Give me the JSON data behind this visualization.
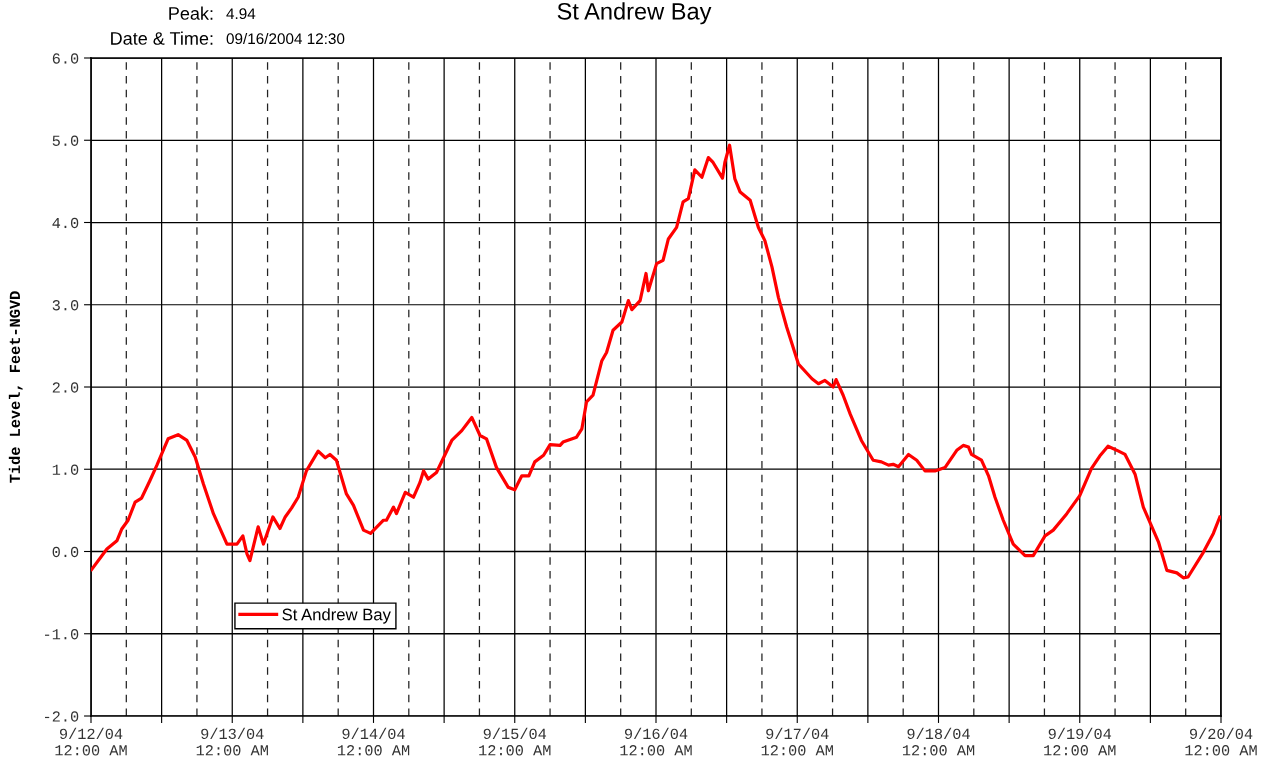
{
  "chart_data": {
    "type": "line",
    "title": "St Andrew Bay",
    "ylabel": "Tide Level, Feet-NGVD",
    "annotations": [
      "Peak:",
      "4.94",
      "Date & Time:",
      "09/16/2004 12:30"
    ],
    "xlim": [
      "2004-09-12T00:00",
      "2004-09-20T00:00"
    ],
    "xticks": [
      {
        "value": "2004-09-12T00:00",
        "label": "9/12/04\n12:00 AM"
      },
      {
        "value": "2004-09-12T12:00",
        "label": null
      },
      {
        "value": "2004-09-13T00:00",
        "label": "9/13/04\n12:00 AM"
      },
      {
        "value": "2004-09-13T12:00",
        "label": null
      },
      {
        "value": "2004-09-14T00:00",
        "label": "9/14/04\n12:00 AM"
      },
      {
        "value": "2004-09-14T12:00",
        "label": null
      },
      {
        "value": "2004-09-15T00:00",
        "label": "9/15/04\n12:00 AM"
      },
      {
        "value": "2004-09-15T12:00",
        "label": null
      },
      {
        "value": "2004-09-16T00:00",
        "label": "9/16/04\n12:00 AM"
      },
      {
        "value": "2004-09-16T12:00",
        "label": null
      },
      {
        "value": "2004-09-17T00:00",
        "label": "9/17/04\n12:00 AM"
      },
      {
        "value": "2004-09-17T12:00",
        "label": null
      },
      {
        "value": "2004-09-18T00:00",
        "label": "9/18/04\n12:00 AM"
      },
      {
        "value": "2004-09-18T12:00",
        "label": null
      },
      {
        "value": "2004-09-19T00:00",
        "label": "9/19/04\n12:00 AM"
      },
      {
        "value": "2004-09-19T12:00",
        "label": null
      },
      {
        "value": "2004-09-20T00:00",
        "label": "9/20/04\n12:00 AM"
      }
    ],
    "ylim": [
      -2,
      6
    ],
    "yticks": [
      {
        "value": -2,
        "label": "-2.0"
      },
      {
        "value": -1,
        "label": "-1.0"
      },
      {
        "value": 0,
        "label": "0.0"
      },
      {
        "value": 1,
        "label": "1.0"
      },
      {
        "value": 2,
        "label": "2.0"
      },
      {
        "value": 3,
        "label": "3.0"
      },
      {
        "value": 4,
        "label": "4.0"
      },
      {
        "value": 5,
        "label": "5.0"
      },
      {
        "value": 6,
        "label": "6.0"
      }
    ],
    "grid": true,
    "legend": "bottom left",
    "marker": "none",
    "line_style": "solid",
    "ref_lines": [
      {
        "axis": "x",
        "value": "2004-09-12T06:00",
        "line_style": "dashed"
      },
      {
        "axis": "x",
        "value": "2004-09-12T18:00",
        "line_style": "dashed"
      },
      {
        "axis": "x",
        "value": "2004-09-13T06:00",
        "line_style": "dashed"
      },
      {
        "axis": "x",
        "value": "2004-09-13T18:00",
        "line_style": "dashed"
      },
      {
        "axis": "x",
        "value": "2004-09-14T06:00",
        "line_style": "dashed"
      },
      {
        "axis": "x",
        "value": "2004-09-14T18:00",
        "line_style": "dashed"
      },
      {
        "axis": "x",
        "value": "2004-09-15T06:00",
        "line_style": "dashed"
      },
      {
        "axis": "x",
        "value": "2004-09-15T18:00",
        "line_style": "dashed"
      },
      {
        "axis": "x",
        "value": "2004-09-16T06:00",
        "line_style": "dashed"
      },
      {
        "axis": "x",
        "value": "2004-09-16T18:00",
        "line_style": "dashed"
      },
      {
        "axis": "x",
        "value": "2004-09-17T06:00",
        "line_style": "dashed"
      },
      {
        "axis": "x",
        "value": "2004-09-17T18:00",
        "line_style": "dashed"
      },
      {
        "axis": "x",
        "value": "2004-09-18T06:00",
        "line_style": "dashed"
      },
      {
        "axis": "x",
        "value": "2004-09-18T18:00",
        "line_style": "dashed"
      },
      {
        "axis": "x",
        "value": "2004-09-19T06:00",
        "line_style": "dashed"
      },
      {
        "axis": "x",
        "value": "2004-09-19T18:00",
        "line_style": "dashed"
      }
    ],
    "series": [
      {
        "name": "St Andrew Bay",
        "color": "#ff0000",
        "x": [
          "2004-09-12T00:06",
          "2004-09-12T02:42",
          "2004-09-12T04:24",
          "2004-09-12T05:12",
          "2004-09-12T06:18",
          "2004-09-12T07:30",
          "2004-09-12T08:36",
          "2004-09-12T10:00",
          "2004-09-12T11:12",
          "2004-09-12T13:06",
          "2004-09-12T14:48",
          "2004-09-12T16:18",
          "2004-09-12T17:42",
          "2004-09-12T19:06",
          "2004-09-12T20:48",
          "2004-09-12T23:06",
          "2004-09-13T00:48",
          "2004-09-13T01:48",
          "2004-09-13T02:30",
          "2004-09-13T03:00",
          "2004-09-13T04:24",
          "2004-09-13T05:18",
          "2004-09-13T06:54",
          "2004-09-13T08:06",
          "2004-09-13T09:00",
          "2004-09-13T10:06",
          "2004-09-13T11:12",
          "2004-09-13T12:36",
          "2004-09-13T14:36",
          "2004-09-13T15:48",
          "2004-09-13T16:36",
          "2004-09-13T17:42",
          "2004-09-13T19:24",
          "2004-09-13T20:36",
          "2004-09-13T22:18",
          "2004-09-13T23:30",
          "2004-09-14T01:42",
          "2004-09-14T02:12",
          "2004-09-14T03:24",
          "2004-09-14T03:54",
          "2004-09-14T05:24",
          "2004-09-14T06:48",
          "2004-09-14T07:54",
          "2004-09-14T08:30",
          "2004-09-14T09:18",
          "2004-09-14T10:42",
          "2004-09-14T13:18",
          "2004-09-14T15:00",
          "2004-09-14T16:42",
          "2004-09-14T18:06",
          "2004-09-14T19:12",
          "2004-09-14T20:54",
          "2004-09-14T22:54",
          "2004-09-15T00:00",
          "2004-09-15T01:12",
          "2004-09-15T02:24",
          "2004-09-15T03:24",
          "2004-09-15T04:54",
          "2004-09-15T06:00",
          "2004-09-15T07:42",
          "2004-09-15T08:12",
          "2004-09-15T10:30",
          "2004-09-15T11:24",
          "2004-09-15T12:12",
          "2004-09-15T13:18",
          "2004-09-15T14:48",
          "2004-09-15T15:36",
          "2004-09-15T16:42",
          "2004-09-15T18:12",
          "2004-09-15T19:18",
          "2004-09-15T19:54",
          "2004-09-15T21:18",
          "2004-09-15T22:18",
          "2004-09-15T22:42",
          "2004-09-16T00:06",
          "2004-09-16T01:12",
          "2004-09-16T02:06",
          "2004-09-16T03:30",
          "2004-09-16T04:36",
          "2004-09-16T05:30",
          "2004-09-16T06:36",
          "2004-09-16T07:48",
          "2004-09-16T08:54",
          "2004-09-16T09:42",
          "2004-09-16T11:18",
          "2004-09-16T11:42",
          "2004-09-16T12:30",
          "2004-09-16T13:24",
          "2004-09-16T14:18",
          "2004-09-16T16:00",
          "2004-09-16T17:24",
          "2004-09-16T18:30",
          "2004-09-16T19:42",
          "2004-09-16T20:48",
          "2004-09-16T22:12",
          "2004-09-17T00:12",
          "2004-09-17T02:30",
          "2004-09-17T03:36",
          "2004-09-17T04:42",
          "2004-09-17T06:06",
          "2004-09-17T06:36",
          "2004-09-17T07:48",
          "2004-09-17T09:00",
          "2004-09-17T10:54",
          "2004-09-17T12:54",
          "2004-09-17T14:18",
          "2004-09-17T15:30",
          "2004-09-17T16:18",
          "2004-09-17T17:12",
          "2004-09-17T18:54",
          "2004-09-17T20:18",
          "2004-09-17T21:42",
          "2004-09-17T23:24",
          "2004-09-18T01:06",
          "2004-09-18T03:06",
          "2004-09-18T04:12",
          "2004-09-18T05:06",
          "2004-09-18T05:36",
          "2004-09-18T07:18",
          "2004-09-18T08:30",
          "2004-09-18T09:36",
          "2004-09-18T11:00",
          "2004-09-18T12:42",
          "2004-09-18T14:42",
          "2004-09-18T16:06",
          "2004-09-18T18:06",
          "2004-09-18T19:30",
          "2004-09-18T21:48",
          "2004-09-19T00:00",
          "2004-09-19T02:00",
          "2004-09-19T03:24",
          "2004-09-19T04:48",
          "2004-09-19T06:36",
          "2004-09-19T07:42",
          "2004-09-19T09:24",
          "2004-09-19T10:48",
          "2004-09-19T13:24",
          "2004-09-19T14:48",
          "2004-09-19T16:30",
          "2004-09-19T17:36",
          "2004-09-19T18:24",
          "2004-09-19T21:00",
          "2004-09-19T22:42",
          "2004-09-19T23:48"
        ],
        "values": [
          -0.22,
          0.03,
          0.13,
          0.27,
          0.38,
          0.6,
          0.65,
          0.86,
          1.05,
          1.37,
          1.42,
          1.35,
          1.15,
          0.82,
          0.46,
          0.09,
          0.09,
          0.19,
          -0.03,
          -0.11,
          0.3,
          0.09,
          0.42,
          0.28,
          0.42,
          0.53,
          0.66,
          0.98,
          1.22,
          1.14,
          1.18,
          1.11,
          0.7,
          0.56,
          0.26,
          0.22,
          0.38,
          0.38,
          0.54,
          0.46,
          0.72,
          0.66,
          0.84,
          0.98,
          0.88,
          0.96,
          1.35,
          1.47,
          1.63,
          1.41,
          1.37,
          1.02,
          0.78,
          0.75,
          0.92,
          0.92,
          1.09,
          1.17,
          1.3,
          1.29,
          1.33,
          1.39,
          1.49,
          1.82,
          1.9,
          2.32,
          2.42,
          2.69,
          2.79,
          3.05,
          2.94,
          3.05,
          3.38,
          3.17,
          3.5,
          3.54,
          3.8,
          3.94,
          4.25,
          4.29,
          4.64,
          4.55,
          4.79,
          4.73,
          4.54,
          4.73,
          4.94,
          4.53,
          4.37,
          4.27,
          3.94,
          3.78,
          3.46,
          3.09,
          2.73,
          2.28,
          2.1,
          2.04,
          2.08,
          2.0,
          2.09,
          1.9,
          1.67,
          1.35,
          1.11,
          1.09,
          1.05,
          1.06,
          1.03,
          1.18,
          1.11,
          0.98,
          0.98,
          1.02,
          1.23,
          1.29,
          1.27,
          1.18,
          1.11,
          0.92,
          0.66,
          0.38,
          0.09,
          -0.05,
          -0.05,
          0.19,
          0.26,
          0.46,
          0.68,
          1.01,
          1.16,
          1.28,
          1.22,
          1.18,
          0.94,
          0.54,
          0.11,
          -0.23,
          -0.26,
          -0.32,
          -0.31,
          -0.01,
          0.22,
          0.42
        ]
      }
    ]
  }
}
